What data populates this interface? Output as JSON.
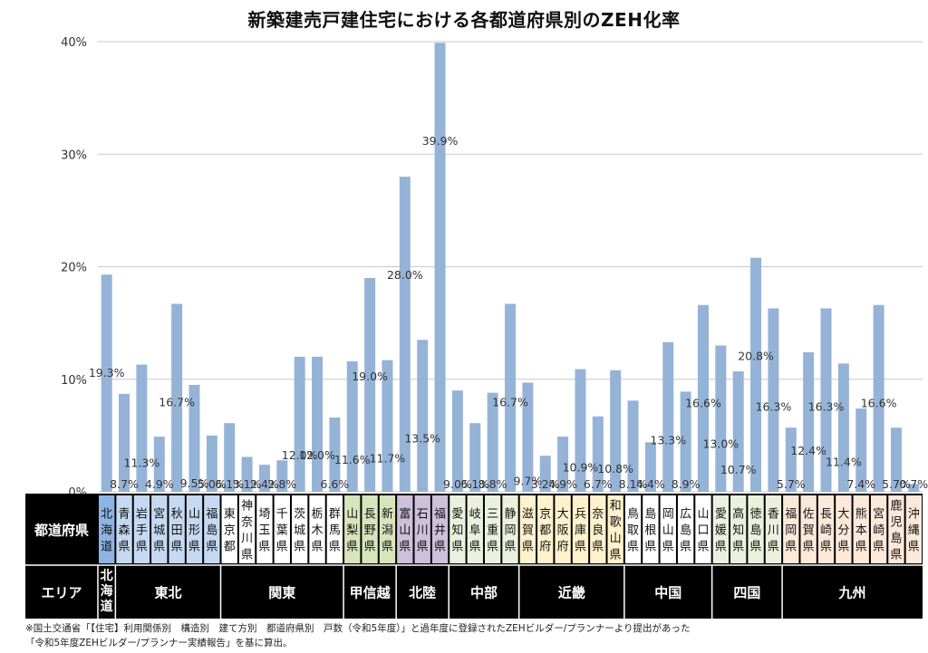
{
  "chart_data": {
    "type": "bar",
    "title": "新築建売戸建住宅における各都道府県別のZEH化率",
    "xlabel": "",
    "ylabel": "",
    "ylim": [
      0,
      40
    ],
    "yticks": [
      "0%",
      "10%",
      "20%",
      "30%",
      "40%"
    ],
    "grid": "horizontal",
    "bar_color": "#95b3d7",
    "categories": [
      "北海道",
      "青森県",
      "岩手県",
      "宮城県",
      "秋田県",
      "山形県",
      "福島県",
      "東京都",
      "神奈川県",
      "埼玉県",
      "千葉県",
      "茨城県",
      "栃木県",
      "群馬県",
      "山梨県",
      "長野県",
      "新潟県",
      "富山県",
      "石川県",
      "福井県",
      "愛知県",
      "岐阜県",
      "三重県",
      "静岡県",
      "滋賀県",
      "京都府",
      "大阪府",
      "兵庫県",
      "奈良県",
      "和歌山県",
      "鳥取県",
      "島根県",
      "岡山県",
      "広島県",
      "山口県",
      "愛媛県",
      "高知県",
      "徳島県",
      "香川県",
      "福岡県",
      "佐賀県",
      "長崎県",
      "大分県",
      "熊本県",
      "宮崎県",
      "鹿児島県",
      "沖縄県"
    ],
    "values": [
      19.3,
      8.7,
      11.3,
      4.9,
      16.7,
      9.5,
      5.0,
      6.1,
      3.1,
      2.4,
      2.8,
      12.0,
      12.0,
      6.6,
      11.6,
      19.0,
      11.7,
      28.0,
      13.5,
      39.9,
      9.0,
      6.1,
      8.8,
      16.7,
      9.7,
      3.2,
      4.9,
      10.9,
      6.7,
      10.8,
      8.1,
      4.4,
      13.3,
      8.9,
      16.6,
      13.0,
      10.7,
      20.8,
      16.3,
      5.7,
      12.4,
      16.3,
      11.4,
      7.4,
      16.6,
      5.7,
      0.7
    ],
    "data_labels": [
      "19.3%",
      "8.7%",
      "11.3%",
      "4.9%",
      "16.7%",
      "9.5%",
      "5.0%",
      "6.1%",
      "3.1%",
      "2.4%",
      "2.8%",
      "12.0%",
      "12.0%",
      "6.6%",
      "11.6%",
      "19.0%",
      "11.7%",
      "28.0%",
      "13.5%",
      "39.9%",
      "9.0%",
      "6.1%",
      "8.8%",
      "16.7%",
      "9.7%",
      "3.2%",
      "4.9%",
      "10.9%",
      "6.7%",
      "10.8%",
      "8.1%",
      "4.4%",
      "13.3%",
      "8.9%",
      "16.6%",
      "13.0%",
      "10.7%",
      "20.8%",
      "16.3%",
      "5.7%",
      "12.4%",
      "16.3%",
      "11.4%",
      "7.4%",
      "16.6%",
      "5.7%",
      "0.7%"
    ],
    "table": {
      "row_label_prefecture": "都道府県",
      "row_label_area": "エリア",
      "areas": [
        {
          "name": "北海道",
          "count": 1,
          "color": "#c5d9f1",
          "header_color": "#8db4e2"
        },
        {
          "name": "東北",
          "count": 6,
          "color": "#c5d9f1",
          "header_color": "#c5d9f1"
        },
        {
          "name": "関東",
          "count": 7,
          "color": "#ffffff",
          "header_color": "#ffffff"
        },
        {
          "name": "甲信越",
          "count": 3,
          "color": "#d8e4bc",
          "header_color": "#d8e4bc"
        },
        {
          "name": "北陸",
          "count": 3,
          "color": "#ccc0da",
          "header_color": "#ccc0da"
        },
        {
          "name": "中部",
          "count": 4,
          "color": "#ebf1de",
          "header_color": "#ebf1de"
        },
        {
          "name": "近畿",
          "count": 6,
          "color": "#fff2cc",
          "header_color": "#fff2cc"
        },
        {
          "name": "中国",
          "count": 5,
          "color": "#ffffff",
          "header_color": "#ffffff"
        },
        {
          "name": "四国",
          "count": 4,
          "color": "#ebf1de",
          "header_color": "#ebf1de"
        },
        {
          "name": "九州",
          "count": 8,
          "color": "#fde9d9",
          "header_color": "#fde9d9"
        }
      ]
    }
  },
  "footnote": {
    "line1": "※国土交通省「【住宅】利用関係別　構造別　建て方別　都道府県別　戸数（令和5年度）」と過年度に登録されたZEHビルダー/プランナーより提出があった",
    "line2": "「令和5年度ZEHビルダー/プランナー実績報告」を基に算出。"
  }
}
